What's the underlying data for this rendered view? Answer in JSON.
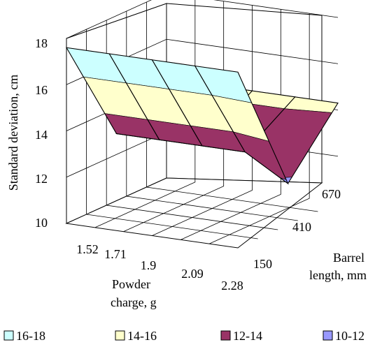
{
  "chart_data": {
    "type": "surface",
    "ylabel": "Standard deviation, cm",
    "xlabel": "Powder charge, g",
    "zlabel": "Barrel length, mm",
    "xlabel_lines": [
      "Powder",
      "charge, g"
    ],
    "zlabel_lines": [
      "Barrel",
      "length, mm"
    ],
    "powder_charge": [
      "1.52",
      "1.71",
      "1.9",
      "2.09",
      "2.28"
    ],
    "barrel_length": [
      "150",
      "410",
      "670"
    ],
    "y_ticks": [
      "10",
      "12",
      "14",
      "16",
      "18"
    ],
    "ylim": [
      10,
      18
    ],
    "grid": true,
    "legend_position": "bottom",
    "legend": [
      {
        "label": "16-18",
        "color": "#ccffff"
      },
      {
        "label": "14-16",
        "color": "#ffffcc"
      },
      {
        "label": "12-14",
        "color": "#993366"
      },
      {
        "label": "10-12",
        "color": "#9999ff"
      }
    ],
    "values_by_barrel_length": {
      "150": [
        17.6,
        17.6,
        17.6,
        17.6,
        17.6
      ],
      "410": [
        12.9,
        12.9,
        12.9,
        12.9,
        11.8
      ],
      "670": [
        14.3,
        14.3,
        14.3,
        14.3,
        14.3
      ]
    }
  }
}
